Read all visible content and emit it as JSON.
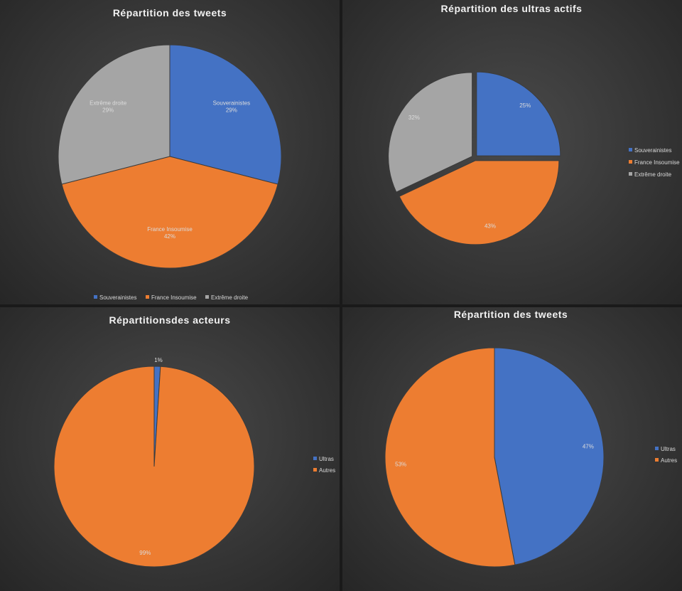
{
  "chart_data": [
    {
      "type": "pie",
      "title": "Répartition des tweets",
      "categories": [
        "Souverainistes",
        "France Insoumise",
        "Extrême droite"
      ],
      "values": [
        29,
        42,
        29
      ],
      "labels": [
        [
          "Souverainistes",
          "29%"
        ],
        [
          "France Insoumise",
          "42%"
        ],
        [
          "Extrême droite",
          "29%"
        ]
      ],
      "colors": [
        "#4472c4",
        "#ed7d31",
        "#a5a5a5"
      ],
      "legend": "bottom"
    },
    {
      "type": "pie",
      "title": "Répartition des ultras actifs",
      "categories": [
        "Souverainistes",
        "France Insoumise",
        "Extrême droite"
      ],
      "values": [
        25,
        43,
        32
      ],
      "labels": [
        [
          "25%"
        ],
        [
          "43%"
        ],
        [
          "32%"
        ]
      ],
      "colors": [
        "#4472c4",
        "#ed7d31",
        "#a5a5a5"
      ],
      "legend": "right"
    },
    {
      "type": "pie",
      "title": "Répartitionsdes acteurs",
      "categories": [
        "Ultras",
        "Autres"
      ],
      "values": [
        1,
        99
      ],
      "labels": [
        [
          "1%"
        ],
        [
          "99%"
        ]
      ],
      "colors": [
        "#4472c4",
        "#ed7d31"
      ],
      "legend": "right"
    },
    {
      "type": "pie",
      "title": "Répartition des tweets",
      "categories": [
        "Ultras",
        "Autres"
      ],
      "values": [
        47,
        53
      ],
      "labels": [
        [
          "47%"
        ],
        [
          "53%"
        ]
      ],
      "colors": [
        "#4472c4",
        "#ed7d31"
      ],
      "legend": "right"
    }
  ]
}
